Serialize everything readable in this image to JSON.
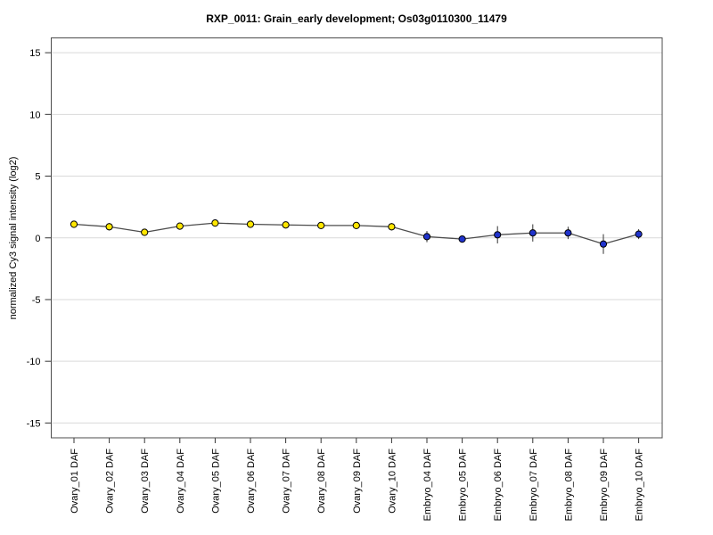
{
  "chart_data": {
    "type": "line",
    "title": "RXP_0011: Grain_early development; Os03g0110300_11479",
    "ylabel": "normalized Cy3 signal intensity (log2)",
    "xlabel": "",
    "ylim": [
      -16.2,
      16.2
    ],
    "yticks": [
      -15,
      -10,
      -5,
      0,
      5,
      10,
      15
    ],
    "grid": true,
    "legend_position": "none",
    "categories": [
      "Ovary_01 DAF",
      "Ovary_02 DAF",
      "Ovary_03 DAF",
      "Ovary_04 DAF",
      "Ovary_05 DAF",
      "Ovary_06 DAF",
      "Ovary_07 DAF",
      "Ovary_08 DAF",
      "Ovary_09 DAF",
      "Ovary_10 DAF",
      "Embryo_04 DAF",
      "Embryo_05 DAF",
      "Embryo_06 DAF",
      "Embryo_07 DAF",
      "Embryo_08 DAF",
      "Embryo_09 DAF",
      "Embryo_10 DAF"
    ],
    "series": [
      {
        "name": "normalized Cy3 signal intensity (log2)",
        "values": [
          1.1,
          0.9,
          0.45,
          0.95,
          1.2,
          1.1,
          1.05,
          1.0,
          1.0,
          0.9,
          0.1,
          -0.1,
          0.25,
          0.4,
          0.4,
          -0.5,
          0.3
        ],
        "errors": [
          0.15,
          0.3,
          0.2,
          0.2,
          0.15,
          0.15,
          0.2,
          0.2,
          0.15,
          0.3,
          0.45,
          0.15,
          0.7,
          0.7,
          0.5,
          0.8,
          0.4
        ]
      }
    ],
    "groups": [
      {
        "label": "Ovary",
        "color": "#ffe600",
        "count": 10
      },
      {
        "label": "Embryo",
        "color": "#2033cc",
        "count": 7
      }
    ],
    "colors": {
      "line": "#4d4d4d",
      "error_bar": "#333333",
      "marker_outline": "#000000",
      "grid": "#d9d9d9",
      "frame": "#4d4d4d",
      "tick": "#333333",
      "text": "#000000",
      "background": "#ffffff"
    }
  }
}
